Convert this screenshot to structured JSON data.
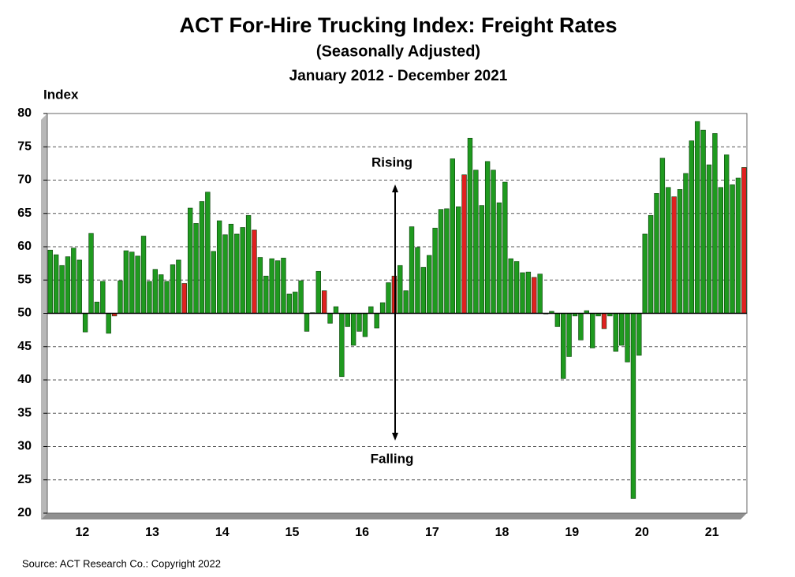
{
  "chart_data": {
    "type": "bar",
    "title": "ACT For-Hire Trucking Index: Freight Rates",
    "subtitle": "(Seasonally Adjusted)",
    "date_range": "January  2012 - December  2021",
    "y_label": "Index",
    "annotations": [
      "Rising",
      "Falling"
    ],
    "source": "Source: ACT Research Co.: Copyright 2022",
    "categories": [
      null,
      null,
      null,
      null,
      null,
      null,
      "12",
      null,
      null,
      null,
      null,
      null,
      null,
      null,
      null,
      null,
      null,
      null,
      "13",
      null,
      null,
      null,
      null,
      null,
      null,
      null,
      null,
      null,
      null,
      null,
      "14",
      null,
      null,
      null,
      null,
      null,
      null,
      null,
      null,
      null,
      null,
      null,
      "15",
      null,
      null,
      null,
      null,
      null,
      null,
      null,
      null,
      null,
      null,
      null,
      "16",
      null,
      null,
      null,
      null,
      null,
      null,
      null,
      null,
      null,
      null,
      null,
      "17",
      null,
      null,
      null,
      null,
      null,
      null,
      null,
      null,
      null,
      null,
      null,
      "18",
      null,
      null,
      null,
      null,
      null,
      null,
      null,
      null,
      null,
      null,
      null,
      "19",
      null,
      null,
      null,
      null,
      null,
      null,
      null,
      null,
      null,
      null,
      null,
      "20",
      null,
      null,
      null,
      null,
      null,
      null,
      null,
      null,
      null,
      null,
      null,
      "21",
      null,
      null,
      null,
      null,
      null
    ],
    "values": [
      59.5,
      58.8,
      57.2,
      58.5,
      59.8,
      58,
      47.2,
      62,
      51.7,
      54.8,
      47,
      49.6,
      54.9,
      59.4,
      59.2,
      58.6,
      61.6,
      54.8,
      56.6,
      55.8,
      54.8,
      57.3,
      58,
      54.5,
      65.8,
      63.5,
      66.8,
      68.2,
      59.3,
      63.9,
      61.8,
      63.4,
      61.9,
      62.9,
      64.7,
      62.5,
      58.4,
      55.6,
      58.2,
      57.9,
      58.3,
      52.9,
      53.2,
      54.9,
      47.3,
      50.1,
      56.3,
      53.4,
      48.5,
      51,
      40.5,
      48,
      45.2,
      47.3,
      46.5,
      51,
      47.8,
      51.6,
      54.6,
      55.6,
      57.2,
      53.4,
      63,
      59.9,
      56.9,
      58.7,
      62.8,
      65.6,
      65.7,
      73.2,
      66,
      70.8,
      76.3,
      71.5,
      66.2,
      72.8,
      71.5,
      66.6,
      69.7,
      58.2,
      57.8,
      56.1,
      56.2,
      55.4,
      55.9,
      49.9,
      50.3,
      48,
      40.2,
      43.5,
      49.6,
      46,
      50.4,
      44.8,
      49.6,
      47.7,
      49.6,
      44.3,
      45.2,
      42.7,
      22.2,
      43.7,
      61.9,
      64.7,
      68,
      73.3,
      68.9,
      67.5,
      68.6,
      71,
      75.9,
      78.8,
      77.5,
      72.3,
      77,
      68.9,
      73.8,
      69.3,
      70.3,
      71.9
    ],
    "colors": [
      "#1f9a1f",
      "#1f9a1f",
      "#1f9a1f",
      "#1f9a1f",
      "#1f9a1f",
      "#1f9a1f",
      "#1f9a1f",
      "#1f9a1f",
      "#1f9a1f",
      "#1f9a1f",
      "#1f9a1f",
      "#e02020",
      "#1f9a1f",
      "#1f9a1f",
      "#1f9a1f",
      "#1f9a1f",
      "#1f9a1f",
      "#1f9a1f",
      "#1f9a1f",
      "#1f9a1f",
      "#1f9a1f",
      "#1f9a1f",
      "#1f9a1f",
      "#e02020",
      "#1f9a1f",
      "#1f9a1f",
      "#1f9a1f",
      "#1f9a1f",
      "#1f9a1f",
      "#1f9a1f",
      "#1f9a1f",
      "#1f9a1f",
      "#1f9a1f",
      "#1f9a1f",
      "#1f9a1f",
      "#e02020",
      "#1f9a1f",
      "#1f9a1f",
      "#1f9a1f",
      "#1f9a1f",
      "#1f9a1f",
      "#1f9a1f",
      "#1f9a1f",
      "#1f9a1f",
      "#1f9a1f",
      "#1f9a1f",
      "#1f9a1f",
      "#e02020",
      "#1f9a1f",
      "#1f9a1f",
      "#1f9a1f",
      "#1f9a1f",
      "#1f9a1f",
      "#1f9a1f",
      "#1f9a1f",
      "#1f9a1f",
      "#1f9a1f",
      "#1f9a1f",
      "#1f9a1f",
      "#e02020",
      "#1f9a1f",
      "#1f9a1f",
      "#1f9a1f",
      "#1f9a1f",
      "#1f9a1f",
      "#1f9a1f",
      "#1f9a1f",
      "#1f9a1f",
      "#1f9a1f",
      "#1f9a1f",
      "#1f9a1f",
      "#e02020",
      "#1f9a1f",
      "#1f9a1f",
      "#1f9a1f",
      "#1f9a1f",
      "#1f9a1f",
      "#1f9a1f",
      "#1f9a1f",
      "#1f9a1f",
      "#1f9a1f",
      "#1f9a1f",
      "#1f9a1f",
      "#e02020",
      "#1f9a1f",
      "#1f9a1f",
      "#1f9a1f",
      "#1f9a1f",
      "#1f9a1f",
      "#1f9a1f",
      "#1f9a1f",
      "#1f9a1f",
      "#1f9a1f",
      "#1f9a1f",
      "#1f9a1f",
      "#e02020",
      "#1f9a1f",
      "#1f9a1f",
      "#1f9a1f",
      "#1f9a1f",
      "#1f9a1f",
      "#1f9a1f",
      "#1f9a1f",
      "#1f9a1f",
      "#1f9a1f",
      "#1f9a1f",
      "#1f9a1f",
      "#e02020",
      "#1f9a1f",
      "#1f9a1f",
      "#1f9a1f",
      "#1f9a1f",
      "#1f9a1f",
      "#1f9a1f",
      "#1f9a1f",
      "#1f9a1f",
      "#1f9a1f",
      "#1f9a1f",
      "#1f9a1f",
      "#e02020"
    ],
    "baseline": 50,
    "ylim": [
      20,
      80
    ],
    "yticks": [
      20,
      25,
      30,
      35,
      40,
      45,
      50,
      55,
      60,
      65,
      70,
      75,
      80
    ],
    "grid": true
  }
}
